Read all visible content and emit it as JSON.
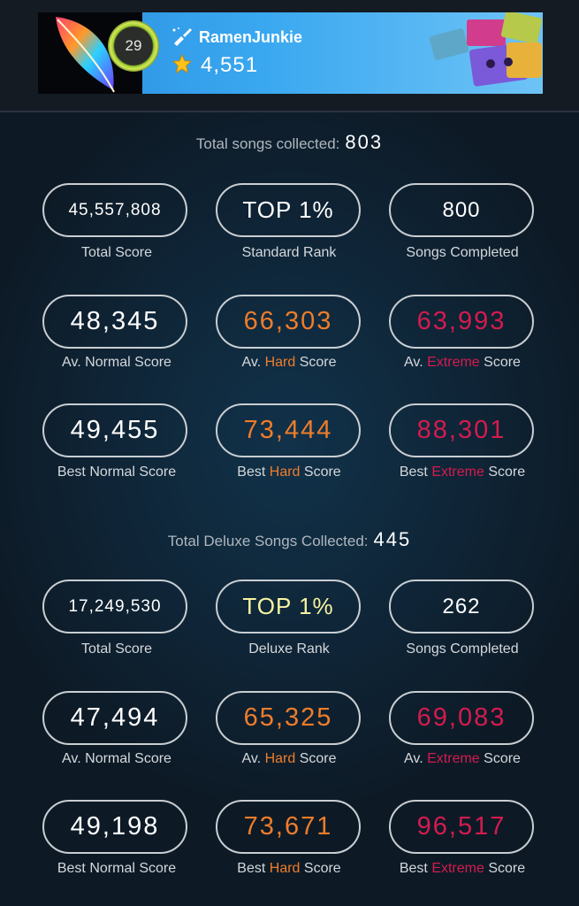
{
  "profile": {
    "level": "29",
    "username": "RamenJunkie",
    "coins": "4,551"
  },
  "icons": {
    "brush": "paintbrush-icon",
    "star": "star-icon"
  },
  "colors": {
    "hard": "#ef7d2a",
    "extreme": "#d41b4f",
    "rank_gold": "#f7f3a0"
  },
  "standard": {
    "heading": "Total songs collected:",
    "count": "803",
    "total_score": "45,557,808",
    "total_score_label": "Total Score",
    "rank": "TOP 1%",
    "rank_label": "Standard Rank",
    "completed": "800",
    "completed_label": "Songs Completed",
    "av_normal": "48,345",
    "av_hard": "66,303",
    "av_extreme": "63,993",
    "best_normal": "49,455",
    "best_hard": "73,444",
    "best_extreme": "88,301"
  },
  "deluxe": {
    "heading": "Total Deluxe Songs Collected:",
    "count": "445",
    "total_score": "17,249,530",
    "total_score_label": "Total Score",
    "rank": "TOP 1%",
    "rank_label": "Deluxe Rank",
    "completed": "262",
    "completed_label": "Songs Completed",
    "av_normal": "47,494",
    "av_hard": "65,325",
    "av_extreme": "69,083",
    "best_normal": "49,198",
    "best_hard": "73,671",
    "best_extreme": "96,517"
  },
  "labels": {
    "av_prefix": "Av.",
    "best_prefix": "Best",
    "normal_score": "Normal Score",
    "hard": "Hard",
    "extreme": "Extreme",
    "score": "Score"
  }
}
